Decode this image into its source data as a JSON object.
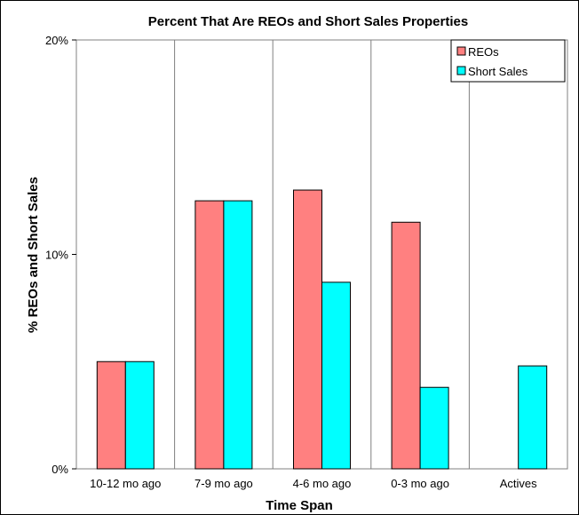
{
  "chart_data": {
    "type": "bar",
    "title": "Percent That Are REOs and Short Sales Properties",
    "xlabel": "Time Span",
    "ylabel": "% REOs and Short Sales",
    "categories": [
      "10-12 mo ago",
      "7-9 mo ago",
      "4-6 mo ago",
      "0-3 mo ago",
      "Actives"
    ],
    "series": [
      {
        "name": "REOs",
        "color": "#ff8080",
        "values": [
          5.0,
          12.5,
          13.0,
          11.5,
          0
        ]
      },
      {
        "name": "Short Sales",
        "color": "#00ffff",
        "values": [
          5.0,
          12.5,
          8.7,
          3.8,
          4.8
        ]
      }
    ],
    "ylim": [
      0,
      20
    ],
    "yticks": [
      0,
      10,
      20
    ],
    "ytick_labels": [
      "0%",
      "10%",
      "20%"
    ],
    "grid": "vertical category separators",
    "legend": "top-right"
  }
}
